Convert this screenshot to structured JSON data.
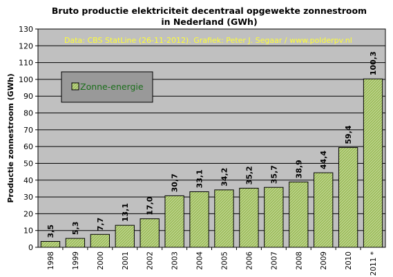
{
  "colors": {
    "plot_background": "#c0c0c0",
    "bar_fill": "#9bbb59",
    "bar_hatch": "#c9dca0",
    "bar_border": "#000000",
    "source_note": "#ffff33",
    "legend_background": "#999999",
    "legend_text": "#1a6e1a"
  },
  "chart_data": {
    "type": "bar",
    "title_lines": [
      "Bruto productie elektriciteit decentraal opgewekte zonnestroom",
      "in Nederland (GWh)"
    ],
    "source_note": "Data: CBS StatLine (26-11-2012).  Grafiek:  Peter J. Segaar / www.polderpv.nl",
    "xlabel": "",
    "ylabel": "Productie zonnestroom (GWh)",
    "ylim": [
      0,
      130
    ],
    "yticks": [
      "0",
      "10",
      "20",
      "30",
      "40",
      "50",
      "60",
      "70",
      "80",
      "90",
      "100",
      "110",
      "120",
      "130"
    ],
    "grid": true,
    "legend": {
      "position": "top-left",
      "entries": [
        "Zonne-energie"
      ]
    },
    "categories": [
      "1998",
      "1999",
      "2000",
      "2001",
      "2002",
      "2003",
      "2004",
      "2005",
      "2006",
      "2007",
      "2008",
      "2009",
      "2010",
      "2011 *"
    ],
    "series": [
      {
        "name": "Zonne-energie",
        "values": [
          3.5,
          5.3,
          7.7,
          13.1,
          17.0,
          30.7,
          33.1,
          34.2,
          35.2,
          35.7,
          38.9,
          44.4,
          59.4,
          100.3
        ],
        "labels": [
          "3,5",
          "5,3",
          "7,7",
          "13,1",
          "17,0",
          "30,7",
          "33,1",
          "34,2",
          "35,2",
          "35,7",
          "38,9",
          "44,4",
          "59,4",
          "100,3"
        ]
      }
    ]
  }
}
